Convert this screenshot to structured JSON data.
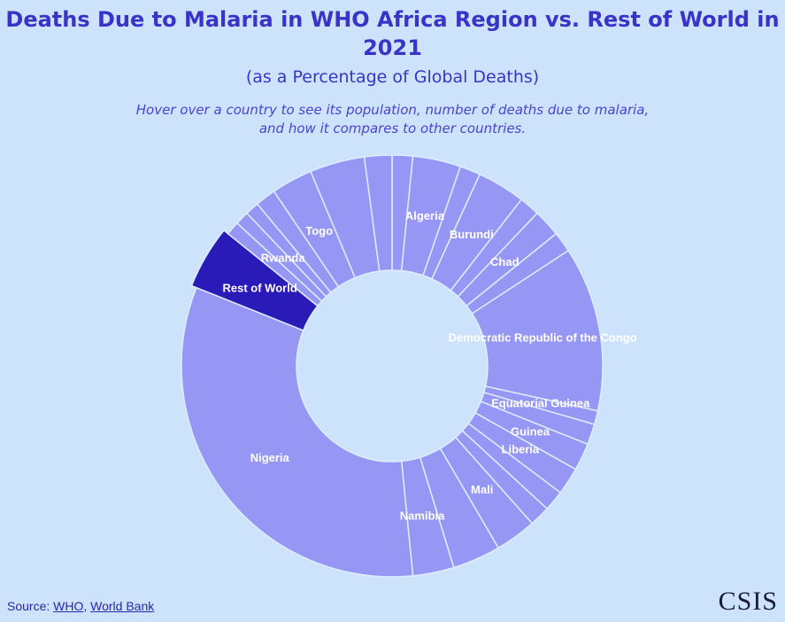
{
  "title": "Deaths Due to Malaria in WHO Africa Region vs. Rest of World in 2021",
  "subtitle": "(as a Percentage of Global Deaths)",
  "note": "Hover over a country to see its population, number of deaths due to malaria, and how it compares to other countries.",
  "source": {
    "prefix": "Source: ",
    "link1": "WHO",
    "separator": ", ",
    "link2": "World Bank"
  },
  "logo": "CSIS",
  "colors": {
    "slice": "#9696f5",
    "highlight": "#2a1ab8",
    "border": "#ddeeff",
    "background": "#cde3fb",
    "title": "#3a33c8"
  },
  "chart_data": {
    "type": "pie",
    "variant": "donut",
    "title": "Deaths Due to Malaria in WHO Africa Region vs. Rest of World in 2021",
    "unit": "% of global deaths",
    "slices": [
      {
        "name": "",
        "value": 1.5,
        "label": ""
      },
      {
        "name": "Algeria",
        "value": 3.5,
        "label": "Algeria"
      },
      {
        "name": "",
        "value": 1.5,
        "label": ""
      },
      {
        "name": "Burundi",
        "value": 3.5,
        "label": "Burundi"
      },
      {
        "name": "",
        "value": 1.5,
        "label": ""
      },
      {
        "name": "Chad",
        "value": 2.0,
        "label": "Chad"
      },
      {
        "name": "",
        "value": 1.5,
        "label": ""
      },
      {
        "name": "Democratic Republic of the Congo",
        "value": 12.0,
        "label": "Democratic Republic of the Congo"
      },
      {
        "name": "Equatorial Guinea",
        "value": 1.0,
        "label": "Equatorial Guinea"
      },
      {
        "name": "",
        "value": 1.5,
        "label": ""
      },
      {
        "name": "Guinea",
        "value": 2.0,
        "label": "Guinea"
      },
      {
        "name": "Liberia",
        "value": 2.0,
        "label": "Liberia"
      },
      {
        "name": "",
        "value": 1.5,
        "label": ""
      },
      {
        "name": "",
        "value": 1.5,
        "label": ""
      },
      {
        "name": "Mali",
        "value": 3.0,
        "label": "Mali"
      },
      {
        "name": "",
        "value": 3.5,
        "label": ""
      },
      {
        "name": "Namibia",
        "value": 3.0,
        "label": "Namibia"
      },
      {
        "name": "Nigeria",
        "value": 31.0,
        "label": "Nigeria"
      },
      {
        "name": "Rest of World",
        "value": 4.5,
        "label": "Rest of World",
        "highlight": true
      },
      {
        "name": "",
        "value": 1.0,
        "label": ""
      },
      {
        "name": "Rwanda",
        "value": 1.0,
        "label": "Rwanda"
      },
      {
        "name": "",
        "value": 1.0,
        "label": ""
      },
      {
        "name": "",
        "value": 1.5,
        "label": ""
      },
      {
        "name": "Togo",
        "value": 3.0,
        "label": "Togo"
      },
      {
        "name": "",
        "value": 4.0,
        "label": ""
      },
      {
        "name": "",
        "value": 2.0,
        "label": ""
      }
    ]
  }
}
